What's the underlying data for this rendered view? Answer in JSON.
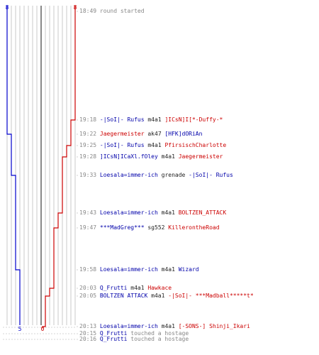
{
  "chart_data": {
    "type": "line",
    "start_labels": {
      "blue": "8",
      "red": "8"
    },
    "end_labels": {
      "blue": "5",
      "red": "0"
    },
    "colors": {
      "blue": "#0000cc",
      "red": "#cc0000",
      "grid": "#bbbbbb",
      "dashed": "#c8c8c8"
    }
  },
  "events": [
    {
      "time": "18:49",
      "parts": [
        {
          "text": "round started",
          "color": "gray"
        }
      ]
    },
    {
      "time": "19:18",
      "parts": [
        {
          "text": "-|SoI|- Rufus",
          "color": "blue"
        },
        {
          "text": " m4a1 ",
          "color": "blk"
        },
        {
          "text": "]ICsN]I[*-Duffy-*",
          "color": "red"
        }
      ]
    },
    {
      "time": "19:22",
      "parts": [
        {
          "text": "Jaegermeister",
          "color": "red"
        },
        {
          "text": " ak47 ",
          "color": "blk"
        },
        {
          "text": "[HFK]dORiAn",
          "color": "blue"
        }
      ]
    },
    {
      "time": "19:25",
      "parts": [
        {
          "text": "-|SoI|- Rufus",
          "color": "blue"
        },
        {
          "text": " m4a1 ",
          "color": "blk"
        },
        {
          "text": "PfirsischCharlotte",
          "color": "red"
        }
      ]
    },
    {
      "time": "19:28",
      "parts": [
        {
          "text": "]ICsN]ICaXl.fOley",
          "color": "blue"
        },
        {
          "text": " m4a1 ",
          "color": "blk"
        },
        {
          "text": "Jaegermeister",
          "color": "red"
        }
      ]
    },
    {
      "time": "19:33",
      "parts": [
        {
          "text": "Loesala=immer-ich",
          "color": "blue"
        },
        {
          "text": " grenade ",
          "color": "blk"
        },
        {
          "text": "-|SoI|- Rufus",
          "color": "blue"
        }
      ]
    },
    {
      "time": "19:43",
      "parts": [
        {
          "text": "Loesala=immer-ich",
          "color": "blue"
        },
        {
          "text": " m4a1 ",
          "color": "blk"
        },
        {
          "text": "BOLTZEN_ATTACK",
          "color": "red"
        }
      ]
    },
    {
      "time": "19:47",
      "parts": [
        {
          "text": "***MadGreg***",
          "color": "blue"
        },
        {
          "text": " sg552 ",
          "color": "blk"
        },
        {
          "text": "KillerontheRoad",
          "color": "red"
        }
      ]
    },
    {
      "time": "19:58",
      "parts": [
        {
          "text": "Loesala=immer-ich",
          "color": "blue"
        },
        {
          "text": " m4a1 ",
          "color": "blk"
        },
        {
          "text": "Wizard",
          "color": "blue"
        }
      ]
    },
    {
      "time": "20:03",
      "parts": [
        {
          "text": "Q_Frutti",
          "color": "blue"
        },
        {
          "text": " m4a1 ",
          "color": "blk"
        },
        {
          "text": "Hawkace",
          "color": "red"
        }
      ]
    },
    {
      "time": "20:05",
      "parts": [
        {
          "text": "BOLTZEN ATTACK",
          "color": "blue"
        },
        {
          "text": " m4a1 ",
          "color": "blk"
        },
        {
          "text": "-|SoI|- ***Madball*****t*",
          "color": "red"
        }
      ]
    },
    {
      "time": "20:13",
      "parts": [
        {
          "text": "Loesala=immer-ich",
          "color": "blue"
        },
        {
          "text": " m4a1 ",
          "color": "blk"
        },
        {
          "text": "[-SONS-] Shinji_Ikari",
          "color": "red"
        }
      ]
    },
    {
      "time": "20:15",
      "parts": [
        {
          "text": "Q_Frutti",
          "color": "blue"
        },
        {
          "text": " touched a hostage",
          "color": "gray"
        }
      ]
    },
    {
      "time": "20:16",
      "parts": [
        {
          "text": "Q_Frutti",
          "color": "blue"
        },
        {
          "text": " touched a hostage",
          "color": "gray"
        }
      ]
    }
  ]
}
